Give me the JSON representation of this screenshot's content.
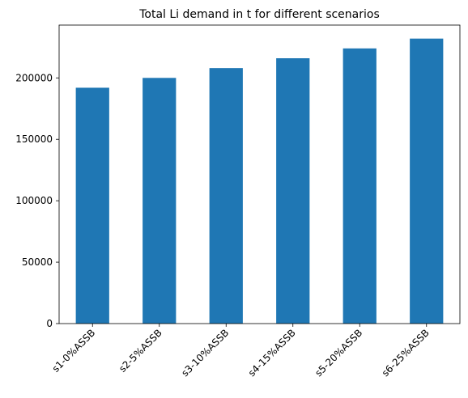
{
  "chart_data": {
    "type": "bar",
    "title": "Total Li demand in t for different scenarios",
    "xlabel": "",
    "ylabel": "",
    "categories": [
      "s1-0%ASSB",
      "s2-5%ASSB",
      "s3-10%ASSB",
      "s4-15%ASSB",
      "s5-20%ASSB",
      "s6-25%ASSB"
    ],
    "values": [
      192000,
      200000,
      208000,
      216000,
      224000,
      232000
    ],
    "ylim": [
      0,
      243000
    ],
    "yticks": [
      0,
      50000,
      100000,
      150000,
      200000
    ],
    "ytick_labels": [
      "0",
      "50000",
      "100000",
      "150000",
      "200000"
    ],
    "bar_color": "#1f77b4",
    "grid": false,
    "legend": "none"
  }
}
